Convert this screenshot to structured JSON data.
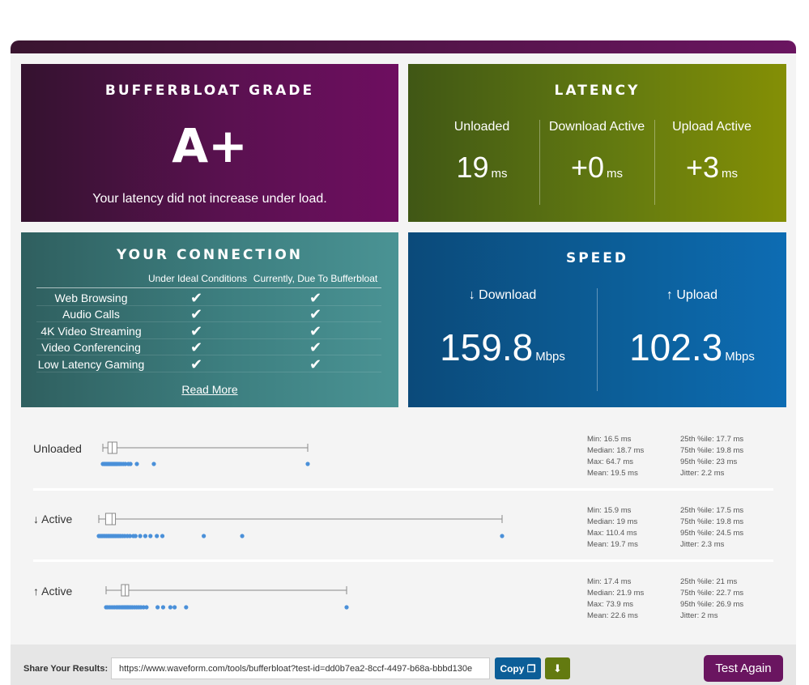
{
  "grade": {
    "title": "BUFFERBLOAT GRADE",
    "value": "A+",
    "message": "Your latency did not increase under load."
  },
  "latency": {
    "title": "LATENCY",
    "unit": "ms",
    "columns": [
      {
        "label": "Unloaded",
        "value": "19"
      },
      {
        "label": "Download Active",
        "value": "+0"
      },
      {
        "label": "Upload Active",
        "value": "+3"
      }
    ]
  },
  "connection": {
    "title": "YOUR CONNECTION",
    "col_ideal": "Under Ideal Conditions",
    "col_current": "Currently, Due To Bufferbloat",
    "check_glyph": "✔",
    "rows": [
      {
        "label": "Web Browsing",
        "ideal": true,
        "current": true
      },
      {
        "label": "Audio Calls",
        "ideal": true,
        "current": true
      },
      {
        "label": "4K Video Streaming",
        "ideal": true,
        "current": true
      },
      {
        "label": "Video Conferencing",
        "ideal": true,
        "current": true
      },
      {
        "label": "Low Latency Gaming",
        "ideal": true,
        "current": true
      }
    ],
    "read_more": "Read More"
  },
  "speed": {
    "title": "SPEED",
    "unit": "Mbps",
    "download": {
      "label": "↓ Download",
      "value": "159.8"
    },
    "upload": {
      "label": "↑ Upload",
      "value": "102.3"
    }
  },
  "latency_details": [
    {
      "label": "Unloaded",
      "stats_left": [
        "Min: 16.5 ms",
        "Median: 18.7 ms",
        "Max: 64.7 ms",
        "Mean: 19.5 ms"
      ],
      "stats_right": [
        "25th %ile: 17.7 ms",
        "75th %ile: 19.8 ms",
        "95th %ile: 23 ms",
        "Jitter: 2.2 ms"
      ],
      "box": {
        "min": 16.5,
        "q1": 17.7,
        "median": 18.7,
        "q3": 19.8,
        "max": 64.7
      },
      "points": [
        16.5,
        16.8,
        17.0,
        17.2,
        17.4,
        17.6,
        17.8,
        18.0,
        18.2,
        18.4,
        18.6,
        18.8,
        19.0,
        19.2,
        19.4,
        19.6,
        19.8,
        20.1,
        20.4,
        20.8,
        21.3,
        21.8,
        22.5,
        23.0,
        24.5,
        28.5,
        64.7
      ]
    },
    {
      "label": "↓ Active",
      "stats_left": [
        "Min: 15.9 ms",
        "Median: 19 ms",
        "Max: 110.4 ms",
        "Mean: 19.7 ms"
      ],
      "stats_right": [
        "25th %ile: 17.5 ms",
        "75th %ile: 19.8 ms",
        "95th %ile: 24.5 ms",
        "Jitter: 2.3 ms"
      ],
      "box": {
        "min": 15.9,
        "q1": 17.5,
        "median": 19.0,
        "q3": 19.8,
        "max": 110.4
      },
      "points": [
        15.9,
        16.2,
        16.5,
        16.8,
        17.1,
        17.4,
        17.7,
        18.0,
        18.3,
        18.6,
        18.9,
        19.2,
        19.5,
        19.8,
        20.2,
        20.6,
        21.0,
        21.5,
        22.0,
        22.6,
        23.2,
        24.0,
        24.5,
        25.6,
        26.8,
        28.0,
        29.5,
        30.8,
        40.5,
        49.5,
        110.4
      ]
    },
    {
      "label": "↑ Active",
      "stats_left": [
        "Min: 17.4 ms",
        "Median: 21.9 ms",
        "Max: 73.9 ms",
        "Mean: 22.6 ms"
      ],
      "stats_right": [
        "25th %ile: 21 ms",
        "75th %ile: 22.7 ms",
        "95th %ile: 26.9 ms",
        "Jitter: 2 ms"
      ],
      "box": {
        "min": 17.4,
        "q1": 21.0,
        "median": 21.9,
        "q3": 22.7,
        "max": 73.9
      },
      "points": [
        17.4,
        17.8,
        18.3,
        18.8,
        19.3,
        19.8,
        20.2,
        20.6,
        21.0,
        21.3,
        21.6,
        21.9,
        22.2,
        22.5,
        22.8,
        23.2,
        23.6,
        24.1,
        24.6,
        25.1,
        25.6,
        26.2,
        26.9,
        29.5,
        30.8,
        32.5,
        33.5,
        36.2,
        73.9
      ]
    }
  ],
  "share": {
    "label": "Share Your Results:",
    "url": "https://www.waveform.com/tools/bufferbloat?test-id=dd0b7ea2-8ccf-4497-b68a-bbbd130e",
    "copy_label": "Copy",
    "copy_icon": "copy-icon",
    "download_icon": "download-icon",
    "test_again_label": "Test Again"
  }
}
